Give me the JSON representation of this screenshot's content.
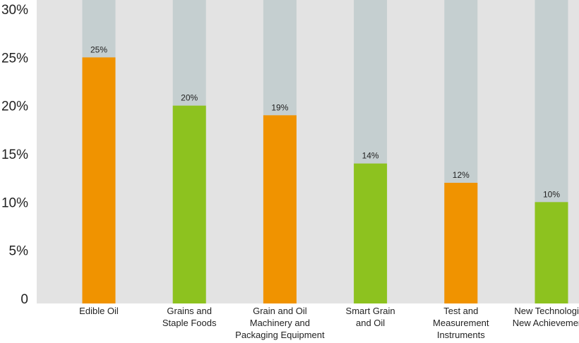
{
  "chart_data": {
    "type": "bar",
    "categories": [
      "Edible Oil",
      "Grains and\nStaple Foods",
      "Grain and Oil\nMachinery and\nPackaging Equipment",
      "Smart Grain\nand Oil",
      "Test and\nMeasurement\nInstruments",
      "New Technologies\nNew Achievements"
    ],
    "values": [
      25,
      20,
      19,
      14,
      12,
      10
    ],
    "data_labels": [
      "25%",
      "20%",
      "19%",
      "14%",
      "12%",
      "10%"
    ],
    "bar_colors": [
      "#f09300",
      "#8dc21f",
      "#f09300",
      "#8dc21f",
      "#f09300",
      "#8dc21f"
    ],
    "background_bar_color": "#c5cfd0",
    "plot_background_color": "#e3e3e3",
    "ylim": [
      0,
      30
    ],
    "ytick_values": [
      0,
      5,
      10,
      15,
      20,
      25,
      30
    ],
    "ytick_labels": [
      "0",
      "5%",
      "10%",
      "15%",
      "20%",
      "25%",
      "30%"
    ],
    "title": "",
    "xlabel": "",
    "ylabel": "",
    "grid": false,
    "legend": "none"
  }
}
